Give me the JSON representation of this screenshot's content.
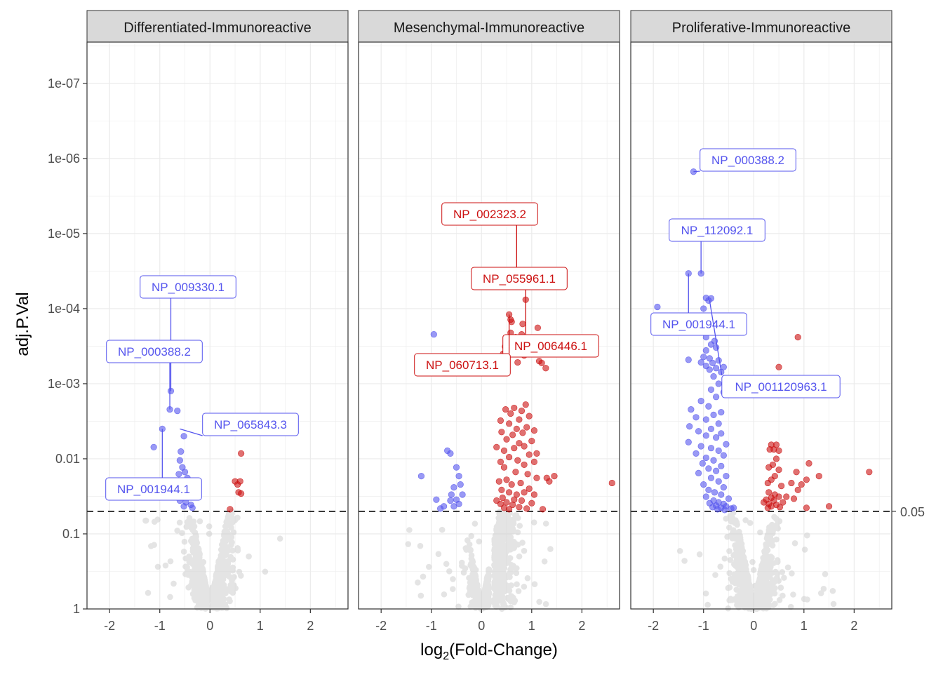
{
  "chart_data": {
    "type": "scatter",
    "layout": "faceted volcano plot, 3 panels sharing y axis",
    "xlabel": {
      "main": "log",
      "sub": "2",
      "rest": "(Fold-Change)"
    },
    "ylabel": "adj.P.Val",
    "x_scale": "linear",
    "y_scale": "-log10 (reversed log)",
    "xlim": [
      -2.45,
      2.75
    ],
    "ylim": [
      1,
      2.8e-08
    ],
    "x_ticks": [
      "-2",
      "-1",
      "0",
      "1",
      "2"
    ],
    "x_tick_values": [
      -2,
      -1,
      0,
      1,
      2
    ],
    "y_ticks": [
      "1e-07",
      "1e-06",
      "1e-05",
      "1e-04",
      "1e-03",
      "0.01",
      "0.1",
      "1"
    ],
    "y_tick_values": [
      1e-07,
      1e-06,
      1e-05,
      0.0001,
      0.001,
      0.01,
      0.1,
      1
    ],
    "threshold": {
      "value": 0.05,
      "label": "0.05",
      "style": "dashed"
    },
    "grid": true,
    "colors": {
      "down": "#5555ee",
      "up": "#cc1111",
      "ns": "#cfcfcf",
      "strip": "#d9d9d9"
    },
    "facets": [
      {
        "name": "Differentiated-Immunoreactive",
        "down_points": [
          [
            -0.78,
            0.00125
          ],
          [
            -0.8,
            0.0022
          ],
          [
            -0.65,
            0.0023
          ],
          [
            -0.95,
            0.004
          ],
          [
            -0.52,
            0.005
          ],
          [
            -1.12,
            0.007
          ],
          [
            -0.58,
            0.008
          ],
          [
            -0.6,
            0.0105
          ],
          [
            -0.55,
            0.013
          ],
          [
            -0.5,
            0.015
          ],
          [
            -0.62,
            0.016
          ],
          [
            -0.45,
            0.018
          ],
          [
            -0.58,
            0.021
          ],
          [
            -0.5,
            0.025
          ],
          [
            -0.55,
            0.03
          ],
          [
            -0.42,
            0.032
          ],
          [
            -0.6,
            0.036
          ],
          [
            -0.48,
            0.038
          ],
          [
            -0.38,
            0.041
          ],
          [
            -0.52,
            0.043
          ],
          [
            -0.35,
            0.045
          ]
        ],
        "up_points": [
          [
            0.62,
            0.0085
          ],
          [
            0.5,
            0.02
          ],
          [
            0.55,
            0.022
          ],
          [
            0.6,
            0.02
          ],
          [
            0.57,
            0.028
          ],
          [
            0.62,
            0.029
          ],
          [
            0.4,
            0.047
          ]
        ],
        "labels": [
          {
            "text": "NP_009330.1",
            "point": [
              -0.78,
              0.00125
            ],
            "color": "down"
          },
          {
            "text": "NP_000388.2",
            "point": [
              -0.8,
              0.0022
            ],
            "color": "down"
          },
          {
            "text": "NP_065843.3",
            "point": [
              -0.6,
              0.004
            ],
            "color": "down"
          },
          {
            "text": "NP_001944.1",
            "point": [
              -0.95,
              0.004
            ],
            "color": "down"
          }
        ]
      },
      {
        "name": "Mesenchymal-Immunoreactive",
        "down_points": [
          [
            -0.95,
            0.00022
          ],
          [
            -1.2,
            0.017
          ],
          [
            -0.68,
            0.0078
          ],
          [
            -0.62,
            0.0085
          ],
          [
            -0.5,
            0.013
          ],
          [
            -0.45,
            0.017
          ],
          [
            -0.42,
            0.022
          ],
          [
            -0.55,
            0.024
          ],
          [
            -0.6,
            0.03
          ],
          [
            -0.38,
            0.03
          ],
          [
            -0.5,
            0.035
          ],
          [
            -0.62,
            0.036
          ],
          [
            -0.45,
            0.04
          ],
          [
            -0.55,
            0.043
          ],
          [
            -0.9,
            0.035
          ],
          [
            -0.75,
            0.043
          ],
          [
            -0.82,
            0.046
          ]
        ],
        "up_points": [
          [
            0.7,
            3.4e-05
          ],
          [
            0.88,
            7.6e-05
          ],
          [
            0.55,
            0.00012
          ],
          [
            0.58,
            0.00014
          ],
          [
            0.82,
            0.00016
          ],
          [
            0.6,
            0.00015
          ],
          [
            0.58,
            0.00021
          ],
          [
            0.8,
            0.00022
          ],
          [
            0.68,
            0.00024
          ],
          [
            0.83,
            0.0003
          ],
          [
            0.77,
            0.00034
          ],
          [
            1.12,
            0.00018
          ],
          [
            1.22,
            0.00037
          ],
          [
            0.49,
            0.00025
          ],
          [
            0.75,
            0.0004
          ],
          [
            0.62,
            0.00031
          ],
          [
            0.47,
            0.00032
          ],
          [
            0.85,
            0.00042
          ],
          [
            0.43,
            0.0004
          ],
          [
            1.15,
            0.0005
          ],
          [
            0.33,
            0.00055
          ],
          [
            0.45,
            0.00062
          ],
          [
            0.72,
            0.00052
          ],
          [
            1.2,
            0.00053
          ],
          [
            1.28,
            0.00062
          ],
          [
            2.6,
            0.021
          ],
          [
            0.45,
            0.045
          ],
          [
            0.55,
            0.047
          ],
          [
            1.22,
            0.047
          ],
          [
            0.38,
            0.04
          ],
          [
            0.5,
            0.038
          ],
          [
            0.62,
            0.041
          ],
          [
            0.75,
            0.044
          ],
          [
            0.9,
            0.046
          ],
          [
            0.42,
            0.033
          ],
          [
            0.65,
            0.035
          ],
          [
            0.8,
            0.036
          ],
          [
            1.0,
            0.039
          ],
          [
            0.3,
            0.036
          ],
          [
            0.7,
            0.03
          ],
          [
            0.85,
            0.028
          ],
          [
            1.05,
            0.03
          ],
          [
            0.55,
            0.028
          ],
          [
            0.4,
            0.026
          ],
          [
            0.95,
            0.025
          ],
          [
            1.1,
            0.018
          ],
          [
            1.3,
            0.018
          ],
          [
            1.45,
            0.017
          ],
          [
            1.35,
            0.02
          ],
          [
            0.6,
            0.022
          ],
          [
            0.78,
            0.021
          ],
          [
            0.35,
            0.02
          ],
          [
            0.5,
            0.019
          ],
          [
            0.92,
            0.016
          ],
          [
            0.68,
            0.015
          ],
          [
            0.45,
            0.013
          ],
          [
            0.85,
            0.012
          ],
          [
            0.38,
            0.011
          ],
          [
            0.72,
            0.0105
          ],
          [
            1.05,
            0.011
          ],
          [
            0.55,
            0.0095
          ],
          [
            0.95,
            0.0088
          ],
          [
            1.1,
            0.0085
          ],
          [
            0.45,
            0.0078
          ],
          [
            0.65,
            0.0072
          ],
          [
            0.85,
            0.0068
          ],
          [
            0.3,
            0.007
          ],
          [
            0.75,
            0.0062
          ],
          [
            1.0,
            0.0058
          ],
          [
            0.5,
            0.0055
          ],
          [
            0.62,
            0.0048
          ],
          [
            0.82,
            0.0045
          ],
          [
            0.4,
            0.0044
          ],
          [
            1.05,
            0.0042
          ],
          [
            0.7,
            0.004
          ],
          [
            0.9,
            0.0038
          ],
          [
            0.55,
            0.0034
          ],
          [
            0.75,
            0.003
          ],
          [
            0.38,
            0.0031
          ],
          [
            0.95,
            0.0027
          ],
          [
            0.58,
            0.0025
          ],
          [
            0.8,
            0.0023
          ],
          [
            0.65,
            0.0021
          ],
          [
            0.88,
            0.0019
          ],
          [
            0.48,
            0.0022
          ]
        ],
        "labels": [
          {
            "text": "NP_002323.2",
            "point": [
              0.7,
              3.4e-05
            ],
            "color": "up"
          },
          {
            "text": "NP_055961.1",
            "point": [
              0.88,
              7.6e-05
            ],
            "color": "up"
          },
          {
            "text": "NP_006446.1",
            "point": [
              0.88,
              7.6e-05
            ],
            "color": "up"
          },
          {
            "text": "NP_060713.1",
            "point": [
              0.55,
              0.00012
            ],
            "color": "up"
          }
        ]
      },
      {
        "name": "Proliferative-Immunoreactive",
        "down_points": [
          [
            -1.2,
            1.5e-06
          ],
          [
            -1.3,
            3.4e-05
          ],
          [
            -1.05,
            3.4e-05
          ],
          [
            -0.95,
            7.2e-05
          ],
          [
            -0.85,
            7.3e-05
          ],
          [
            -1.92,
            9.5e-05
          ],
          [
            -0.9,
            7.8e-05
          ],
          [
            -1.0,
            0.0001
          ],
          [
            -1.75,
            0.00016
          ],
          [
            -0.82,
            0.00013
          ],
          [
            -0.88,
            0.00018
          ],
          [
            -0.95,
            0.00024
          ],
          [
            -0.78,
            0.00027
          ],
          [
            -0.85,
            0.0003
          ],
          [
            -0.95,
            0.00036
          ],
          [
            -0.75,
            0.00033
          ],
          [
            -1.0,
            0.00044
          ],
          [
            -0.88,
            0.00046
          ],
          [
            -0.7,
            0.00049
          ],
          [
            -0.82,
            0.00053
          ],
          [
            -0.95,
            0.00058
          ],
          [
            -0.6,
            0.0006
          ],
          [
            -0.75,
            0.00062
          ],
          [
            -1.3,
            0.00048
          ],
          [
            -1.05,
            0.00052
          ],
          [
            -0.88,
            0.00065
          ],
          [
            -0.65,
            0.0007
          ],
          [
            -0.8,
            0.0008
          ],
          [
            -0.7,
            0.001
          ],
          [
            -0.85,
            0.0012
          ],
          [
            -0.6,
            0.0013
          ],
          [
            -0.75,
            0.0015
          ],
          [
            -1.05,
            0.0017
          ],
          [
            -0.9,
            0.002
          ],
          [
            -1.25,
            0.0022
          ],
          [
            -0.65,
            0.0024
          ],
          [
            -0.8,
            0.0026
          ],
          [
            -1.15,
            0.0028
          ],
          [
            -0.95,
            0.003
          ],
          [
            -0.7,
            0.0034
          ],
          [
            -1.28,
            0.0037
          ],
          [
            -0.85,
            0.004
          ],
          [
            -1.1,
            0.0043
          ],
          [
            -0.65,
            0.0046
          ],
          [
            -0.95,
            0.0049
          ],
          [
            -0.75,
            0.0052
          ],
          [
            -1.3,
            0.006
          ],
          [
            -0.55,
            0.0064
          ],
          [
            -1.05,
            0.0068
          ],
          [
            -0.85,
            0.0072
          ],
          [
            -0.7,
            0.0078
          ],
          [
            -1.15,
            0.0085
          ],
          [
            -0.6,
            0.009
          ],
          [
            -0.95,
            0.0097
          ],
          [
            -0.8,
            0.0105
          ],
          [
            -1.02,
            0.0115
          ],
          [
            -0.65,
            0.0125
          ],
          [
            -0.9,
            0.0135
          ],
          [
            -0.75,
            0.0145
          ],
          [
            -1.1,
            0.0155
          ],
          [
            -0.55,
            0.017
          ],
          [
            -0.85,
            0.018
          ],
          [
            -0.7,
            0.02
          ],
          [
            -1.0,
            0.022
          ],
          [
            -0.6,
            0.024
          ],
          [
            -0.9,
            0.026
          ],
          [
            -0.78,
            0.028
          ],
          [
            -0.65,
            0.03
          ],
          [
            -0.95,
            0.032
          ],
          [
            -0.5,
            0.034
          ],
          [
            -0.8,
            0.036
          ],
          [
            -0.7,
            0.038
          ],
          [
            -0.88,
            0.039
          ],
          [
            -0.6,
            0.04
          ],
          [
            -0.75,
            0.042
          ],
          [
            -0.55,
            0.043
          ],
          [
            -0.82,
            0.044
          ],
          [
            -0.65,
            0.045
          ],
          [
            -0.45,
            0.046
          ],
          [
            -0.72,
            0.047
          ],
          [
            -0.58,
            0.048
          ],
          [
            -0.4,
            0.045
          ]
        ],
        "up_points": [
          [
            0.88,
            0.00024
          ],
          [
            0.5,
            0.0006
          ],
          [
            0.45,
            0.0011
          ],
          [
            0.35,
            0.0065
          ],
          [
            0.45,
            0.0065
          ],
          [
            0.32,
            0.0075
          ],
          [
            0.4,
            0.0075
          ],
          [
            0.5,
            0.0078
          ],
          [
            1.1,
            0.0115
          ],
          [
            0.45,
            0.01
          ],
          [
            0.38,
            0.012
          ],
          [
            0.3,
            0.013
          ],
          [
            0.5,
            0.014
          ],
          [
            0.85,
            0.015
          ],
          [
            0.42,
            0.017
          ],
          [
            0.35,
            0.019
          ],
          [
            0.28,
            0.021
          ],
          [
            0.75,
            0.021
          ],
          [
            0.55,
            0.023
          ],
          [
            0.3,
            0.028
          ],
          [
            0.42,
            0.03
          ],
          [
            0.35,
            0.033
          ],
          [
            0.5,
            0.032
          ],
          [
            0.25,
            0.035
          ],
          [
            0.4,
            0.036
          ],
          [
            0.58,
            0.038
          ],
          [
            0.3,
            0.04
          ],
          [
            0.45,
            0.041
          ],
          [
            0.35,
            0.043
          ],
          [
            0.2,
            0.038
          ],
          [
            0.52,
            0.044
          ],
          [
            0.28,
            0.045
          ],
          [
            0.8,
            0.034
          ],
          [
            1.05,
            0.045
          ],
          [
            1.5,
            0.043
          ],
          [
            0.65,
            0.032
          ],
          [
            0.88,
            0.026
          ],
          [
            0.95,
            0.022
          ],
          [
            1.05,
            0.019
          ],
          [
            1.3,
            0.017
          ],
          [
            2.3,
            0.015
          ]
        ],
        "labels": [
          {
            "text": "NP_000388.2",
            "point": [
              -1.2,
              1.5e-06
            ],
            "color": "down"
          },
          {
            "text": "NP_112092.1",
            "point": [
              -1.05,
              3.4e-05
            ],
            "color": "down"
          },
          {
            "text": "NP_001944.1",
            "point": [
              -1.3,
              3.4e-05
            ],
            "color": "down"
          },
          {
            "text": "NP_001120963.1",
            "point": [
              -0.88,
              7.8e-05
            ],
            "color": "down"
          }
        ]
      }
    ]
  }
}
